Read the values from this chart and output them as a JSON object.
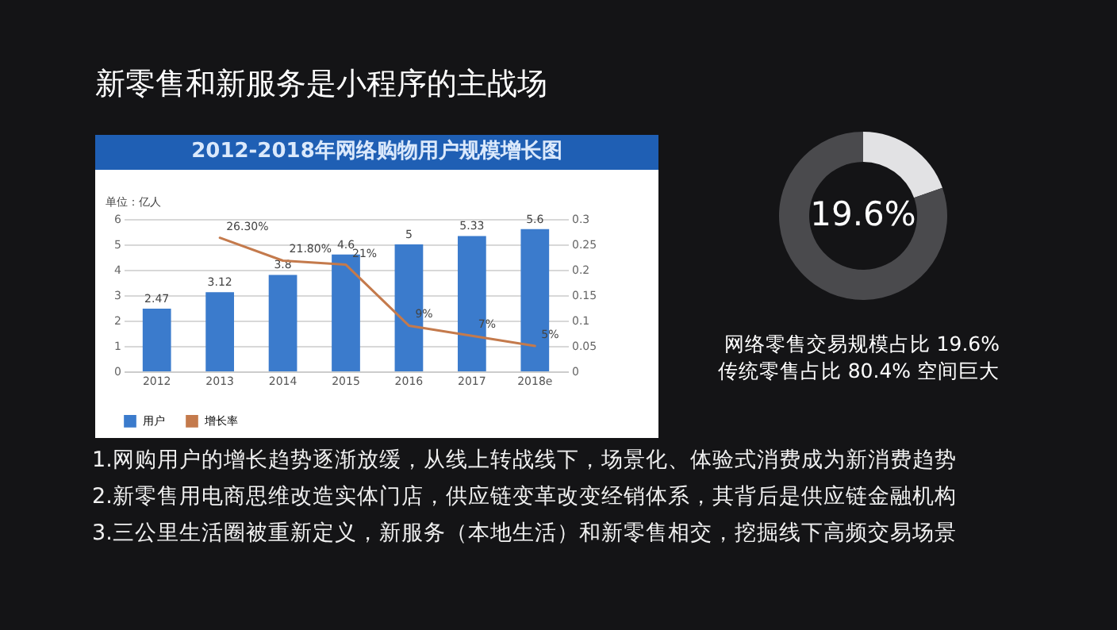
{
  "chart_data": [
    {
      "type": "other",
      "title": "新零售和新服务是小程序的主战场",
      "annotations": [
        "1.网购用户的增长趋势逐渐放缓，从线上转战线下，场景化、体验式消费成为新消费趋势",
        "2.新零售用电商思维改造实体门店，供应链变革改变经销体系，其背后是供应链金融机构",
        "3.三公里生活圈被重新定义，新服务（本地生活）和新零售相交，挖掘线下高频交易场景"
      ]
    },
    {
      "type": "bar",
      "title": "2012-2018年网络购物用户规模增长图",
      "ylabel": "单位：亿人",
      "categories": [
        "2012",
        "2013",
        "2014",
        "2015",
        "2016",
        "2017",
        "2018e"
      ],
      "series": [
        {
          "name": "用户",
          "type": "bar",
          "color": "#3b7bcc",
          "values": [
            2.47,
            3.12,
            3.8,
            4.6,
            5,
            5.33,
            5.6
          ]
        },
        {
          "name": "增长率",
          "type": "line",
          "axis": "y2",
          "color": "#c47a4c",
          "values": [
            null,
            0.263,
            0.218,
            0.21,
            0.09,
            0.07,
            0.05
          ],
          "value_labels": [
            null,
            "26.30%",
            "21.80%",
            "21%",
            "9%",
            "7%",
            "5%"
          ]
        }
      ],
      "ylim": [
        0,
        6
      ],
      "yticks": [
        0,
        1,
        2,
        3,
        4,
        5,
        6
      ],
      "y2lim": [
        0,
        0.3
      ],
      "y2ticks": [
        0,
        0.05,
        0.1,
        0.15,
        0.2,
        0.25,
        0.3
      ],
      "data_labels": true,
      "grid": "y",
      "legend": "bottom"
    },
    {
      "type": "donut",
      "categories": [
        null,
        null
      ],
      "values": [
        19.6,
        80.4
      ],
      "colors": [
        "#e2e2e4",
        "#4a4a4d"
      ],
      "annotations": [
        "19.6%",
        "网络零售交易规模占比 19.6%",
        "传统零售占比 80.4% 空间巨大"
      ]
    }
  ]
}
